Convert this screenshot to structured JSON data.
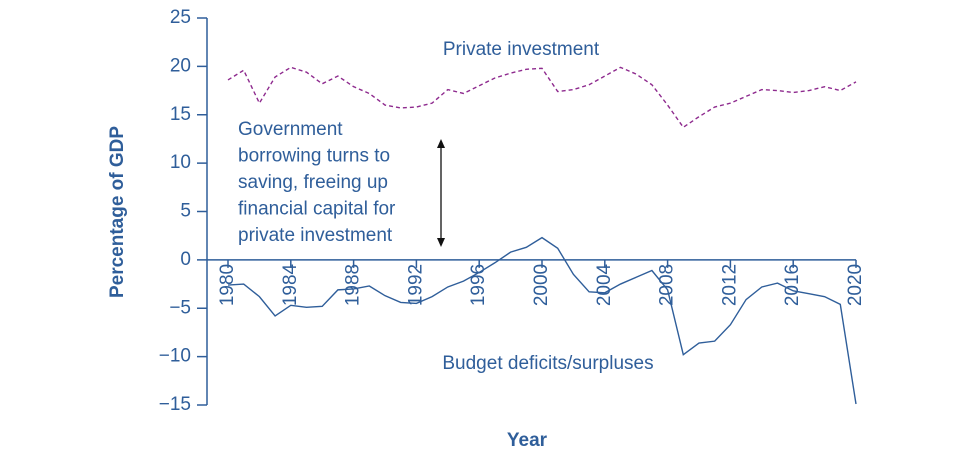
{
  "chart_data": {
    "type": "line",
    "xlabel": "Year",
    "ylabel": "Percentage of GDP",
    "x": [
      1980,
      1981,
      1982,
      1983,
      1984,
      1985,
      1986,
      1987,
      1988,
      1989,
      1990,
      1991,
      1992,
      1993,
      1994,
      1995,
      1996,
      1997,
      1998,
      1999,
      2000,
      2001,
      2002,
      2003,
      2004,
      2005,
      2006,
      2007,
      2008,
      2009,
      2010,
      2011,
      2012,
      2013,
      2014,
      2015,
      2016,
      2017,
      2018,
      2019,
      2020
    ],
    "series": [
      {
        "name": "Private investment",
        "color": "#8e2a8e",
        "dashed": true,
        "values": [
          18.6,
          19.6,
          16.2,
          18.9,
          19.9,
          19.4,
          18.2,
          19.0,
          17.9,
          17.2,
          16.0,
          15.7,
          15.8,
          16.2,
          17.6,
          17.2,
          18.0,
          18.8,
          19.3,
          19.7,
          19.8,
          17.4,
          17.6,
          18.1,
          19.0,
          19.9,
          19.2,
          18.1,
          16.0,
          13.7,
          14.8,
          15.8,
          16.2,
          16.9,
          17.6,
          17.5,
          17.3,
          17.5,
          17.9,
          17.5,
          18.4
        ]
      },
      {
        "name": "Budget deficits/surpluses",
        "color": "#2f5e9a",
        "dashed": false,
        "values": [
          -2.6,
          -2.5,
          -3.8,
          -5.8,
          -4.7,
          -4.9,
          -4.8,
          -3.1,
          -3.0,
          -2.7,
          -3.7,
          -4.4,
          -4.5,
          -3.8,
          -2.8,
          -2.2,
          -1.3,
          -0.3,
          0.8,
          1.3,
          2.3,
          1.2,
          -1.5,
          -3.3,
          -3.4,
          -2.5,
          -1.8,
          -1.1,
          -3.1,
          -9.8,
          -8.6,
          -8.4,
          -6.7,
          -4.1,
          -2.8,
          -2.4,
          -3.2,
          -3.5,
          -3.8,
          -4.6,
          -14.9
        ]
      }
    ],
    "annotation": [
      "Government",
      "borrowing turns to",
      "saving, freeing up",
      "financial capital for",
      "private investment"
    ],
    "xlim": [
      1980,
      2020
    ],
    "xticks": [
      1980,
      1984,
      1988,
      1992,
      1996,
      2000,
      2004,
      2008,
      2012,
      2016,
      2020
    ],
    "ylim": [
      -15,
      25
    ],
    "yticks": [
      {
        "value": -15,
        "label": "−15"
      },
      {
        "value": -10,
        "label": "−10"
      },
      {
        "value": -5,
        "label": "−5"
      },
      0,
      5,
      10,
      15,
      20,
      25
    ]
  }
}
